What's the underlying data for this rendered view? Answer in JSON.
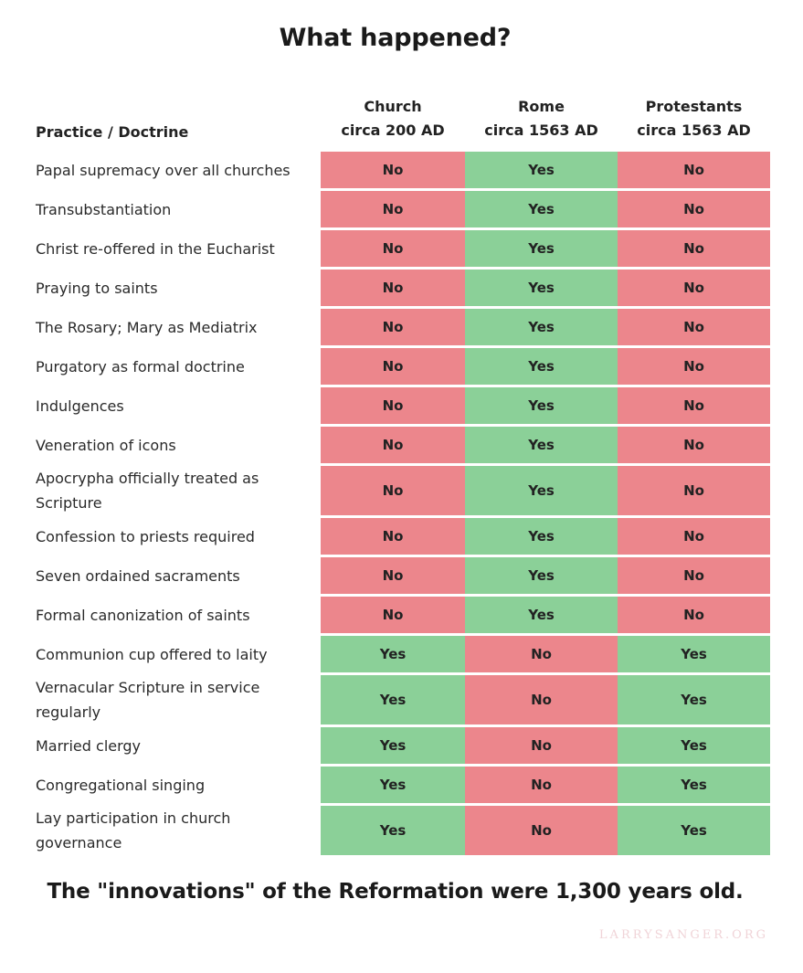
{
  "title": "What happened?",
  "footer": "The \"innovations\" of the Reformation were 1,300 years old.",
  "watermark": "LARRYSANGER.ORG",
  "colors": {
    "yes": "#8bd098",
    "no": "#ec868c"
  },
  "chart_data": {
    "type": "table",
    "columns": [
      {
        "line1": "Practice / Doctrine",
        "line2": ""
      },
      {
        "line1": "Church",
        "line2": "circa 200 AD"
      },
      {
        "line1": "Rome",
        "line2": "circa 1563 AD"
      },
      {
        "line1": "Protestants",
        "line2": "circa 1563 AD"
      }
    ],
    "rows": [
      {
        "label": "Papal supremacy over all churches",
        "church": "No",
        "rome": "Yes",
        "protestants": "No"
      },
      {
        "label": "Transubstantiation",
        "church": "No",
        "rome": "Yes",
        "protestants": "No"
      },
      {
        "label": "Christ re-offered in the Eucharist",
        "church": "No",
        "rome": "Yes",
        "protestants": "No"
      },
      {
        "label": "Praying to saints",
        "church": "No",
        "rome": "Yes",
        "protestants": "No"
      },
      {
        "label": "The Rosary; Mary as Mediatrix",
        "church": "No",
        "rome": "Yes",
        "protestants": "No"
      },
      {
        "label": "Purgatory as formal doctrine",
        "church": "No",
        "rome": "Yes",
        "protestants": "No"
      },
      {
        "label": "Indulgences",
        "church": "No",
        "rome": "Yes",
        "protestants": "No"
      },
      {
        "label": "Veneration of icons",
        "church": "No",
        "rome": "Yes",
        "protestants": "No"
      },
      {
        "label": "Apocrypha officially treated as Scripture",
        "church": "No",
        "rome": "Yes",
        "protestants": "No"
      },
      {
        "label": "Confession to priests required",
        "church": "No",
        "rome": "Yes",
        "protestants": "No"
      },
      {
        "label": "Seven ordained sacraments",
        "church": "No",
        "rome": "Yes",
        "protestants": "No"
      },
      {
        "label": "Formal canonization of saints",
        "church": "No",
        "rome": "Yes",
        "protestants": "No"
      },
      {
        "label": "Communion cup offered to laity",
        "church": "Yes",
        "rome": "No",
        "protestants": "Yes"
      },
      {
        "label": "Vernacular Scripture in service regularly",
        "church": "Yes",
        "rome": "No",
        "protestants": "Yes"
      },
      {
        "label": "Married clergy",
        "church": "Yes",
        "rome": "No",
        "protestants": "Yes"
      },
      {
        "label": "Congregational singing",
        "church": "Yes",
        "rome": "No",
        "protestants": "Yes"
      },
      {
        "label": "Lay participation in church governance",
        "church": "Yes",
        "rome": "No",
        "protestants": "Yes"
      }
    ]
  }
}
